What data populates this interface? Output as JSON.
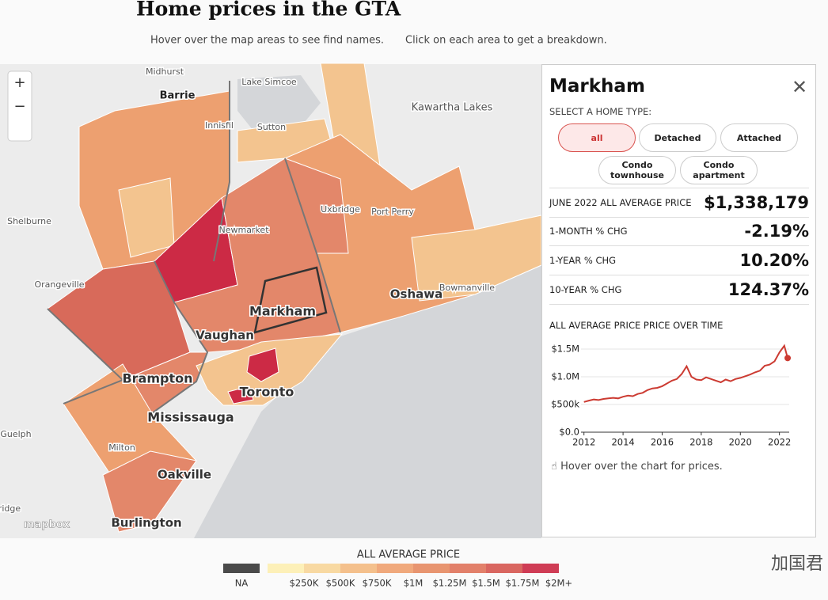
{
  "header": {
    "title": "Home prices in the GTA",
    "hint_hover": "Hover over the map areas to see find names.",
    "hint_click": "Click on each area to get a breakdown."
  },
  "map": {
    "zoom_in": "+",
    "zoom_out": "−",
    "attribution": "mapbox",
    "places": [
      "Midhurst",
      "Barrie",
      "Lake Simcoe",
      "Innisfil",
      "Sutton",
      "Kawartha Lakes",
      "Shelburne",
      "Newmarket",
      "Uxbridge",
      "Port Perry",
      "Orangeville",
      "Bowmanville",
      "Oshawa",
      "Markham",
      "Vaughan",
      "Brampton",
      "Toronto",
      "Mississauga",
      "Guelph",
      "Milton",
      "Oakville",
      "Burlington",
      "ridge"
    ]
  },
  "panel": {
    "region": "Markham",
    "select_label": "SELECT A HOME TYPE:",
    "home_types": [
      "all",
      "Detached",
      "Attached",
      "Condo townhouse",
      "Condo apartment"
    ],
    "stats": [
      {
        "label": "JUNE 2022 ALL AVERAGE PRICE",
        "value": "$1,338,179"
      },
      {
        "label": "1-MONTH % CHG",
        "value": "-2.19%"
      },
      {
        "label": "1-YEAR % CHG",
        "value": "10.20%"
      },
      {
        "label": "10-YEAR % CHG",
        "value": "124.37%"
      }
    ],
    "chart": {
      "type": "line",
      "title": "ALL AVERAGE PRICE PRICE OVER TIME",
      "color": "#cc3b32",
      "x": [
        2012,
        2012.25,
        2012.5,
        2012.75,
        2013,
        2013.25,
        2013.5,
        2013.75,
        2014,
        2014.25,
        2014.5,
        2014.75,
        2015,
        2015.25,
        2015.5,
        2015.75,
        2016,
        2016.25,
        2016.5,
        2016.75,
        2017,
        2017.25,
        2017.5,
        2017.75,
        2018,
        2018.25,
        2018.5,
        2018.75,
        2019,
        2019.25,
        2019.5,
        2019.75,
        2020,
        2020.25,
        2020.5,
        2020.75,
        2021,
        2021.25,
        2021.5,
        2021.75,
        2022,
        2022.25,
        2022.42
      ],
      "values": [
        545000,
        570000,
        590000,
        580000,
        600000,
        610000,
        620000,
        610000,
        640000,
        660000,
        650000,
        690000,
        710000,
        760000,
        790000,
        800000,
        830000,
        880000,
        930000,
        960000,
        1050000,
        1190000,
        1000000,
        950000,
        940000,
        990000,
        960000,
        930000,
        900000,
        950000,
        920000,
        960000,
        980000,
        1010000,
        1040000,
        1080000,
        1110000,
        1200000,
        1220000,
        1280000,
        1440000,
        1560000,
        1338179
      ],
      "xlim": [
        2011.85,
        2022.5
      ],
      "xticks": [
        2012,
        2014,
        2016,
        2018,
        2020,
        2022
      ],
      "ylim": [
        0,
        1600000
      ],
      "yticks": [
        {
          "value": 0,
          "label": "$0.0"
        },
        {
          "value": 500000,
          "label": "$500k"
        },
        {
          "value": 1000000,
          "label": "$1.0M"
        },
        {
          "value": 1500000,
          "label": "$1.5M"
        }
      ]
    },
    "chart_hint": "Hover over the chart for prices."
  },
  "legend": {
    "title": "ALL AVERAGE PRICE",
    "na_label": "NA",
    "na_color": "#4a4a4a",
    "colors": [
      "#fdf0b8",
      "#f8d9a2",
      "#f4c08c",
      "#f0a97c",
      "#e89570",
      "#e2806a",
      "#d96660",
      "#cf3c55"
    ],
    "labels": [
      "$250K",
      "$500K",
      "$750K",
      "$1M",
      "$1.25M",
      "$1.5M",
      "$1.75M",
      "$2M+"
    ]
  },
  "watermark": "加国君"
}
